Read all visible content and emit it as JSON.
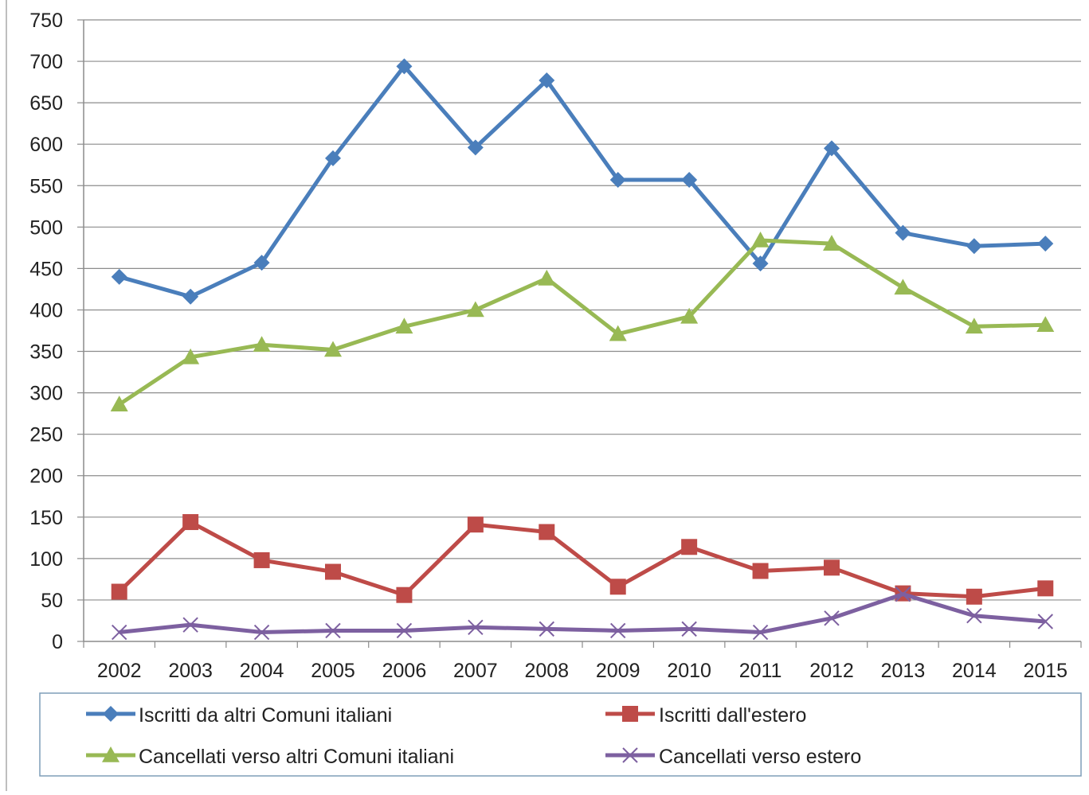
{
  "chart_data": {
    "type": "line",
    "title": "",
    "xlabel": "",
    "ylabel": "",
    "categories": [
      "2002",
      "2003",
      "2004",
      "2005",
      "2006",
      "2007",
      "2008",
      "2009",
      "2010",
      "2011",
      "2012",
      "2013",
      "2014",
      "2015"
    ],
    "ylim": [
      0,
      750
    ],
    "yticks": [
      0,
      50,
      100,
      150,
      200,
      250,
      300,
      350,
      400,
      450,
      500,
      550,
      600,
      650,
      700,
      750
    ],
    "grid": true,
    "legend_position": "bottom",
    "series": [
      {
        "name": "Iscritti da altri Comuni italiani",
        "color": "#4a7ebb",
        "marker": "diamond",
        "values": [
          440,
          416,
          457,
          583,
          694,
          596,
          677,
          557,
          557,
          456,
          595,
          493,
          477,
          480
        ]
      },
      {
        "name": "Iscritti dall'estero",
        "color": "#be4b48",
        "marker": "square",
        "values": [
          60,
          144,
          98,
          84,
          56,
          141,
          132,
          66,
          114,
          85,
          89,
          58,
          54,
          64
        ]
      },
      {
        "name": "Cancellati verso altri Comuni italiani",
        "color": "#98b954",
        "marker": "triangle",
        "values": [
          286,
          343,
          358,
          352,
          380,
          400,
          438,
          371,
          392,
          484,
          480,
          427,
          380,
          382
        ]
      },
      {
        "name": "Cancellati verso estero",
        "color": "#7d60a0",
        "marker": "x",
        "values": [
          11,
          20,
          11,
          13,
          13,
          17,
          15,
          13,
          15,
          11,
          28,
          57,
          31,
          24
        ]
      }
    ]
  }
}
